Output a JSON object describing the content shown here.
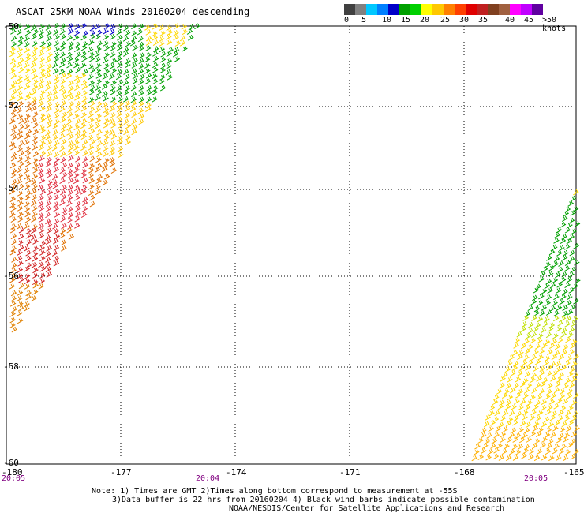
{
  "title": "ASCAT 25KM NOAA Winds 20160204 descending",
  "legend": {
    "colors": [
      "#404040",
      "#808080",
      "#00c8ff",
      "#0080ff",
      "#0000c8",
      "#00a000",
      "#00d000",
      "#ffff00",
      "#ffc800",
      "#ff8000",
      "#ff4000",
      "#e00000",
      "#c02020",
      "#804020",
      "#a06040",
      "#ff00ff",
      "#c000ff",
      "#6000a0"
    ],
    "labels": [
      "0",
      "5",
      "10",
      "15",
      "20",
      "25",
      "30",
      "35",
      "40",
      "45",
      ">50 knots"
    ]
  },
  "axes": {
    "lon_labels": [
      "-180",
      "-177",
      "-174",
      "-171",
      "-168",
      "-165"
    ],
    "lat_labels": [
      "-50",
      "-52",
      "-54",
      "-56",
      "-58",
      "-60"
    ]
  },
  "times": [
    "20:05",
    "20:04",
    "20:05"
  ],
  "notes": {
    "line1": "Note: 1) Times are GMT 2)Times along bottom correspond to measurement at -55S",
    "line2": "3)Data buffer is 22 hrs from 20160204 4) Black wind barbs indicate possible contamination",
    "line3": "NOAA/NESDIS/Center for Satellite Applications and Research"
  }
}
